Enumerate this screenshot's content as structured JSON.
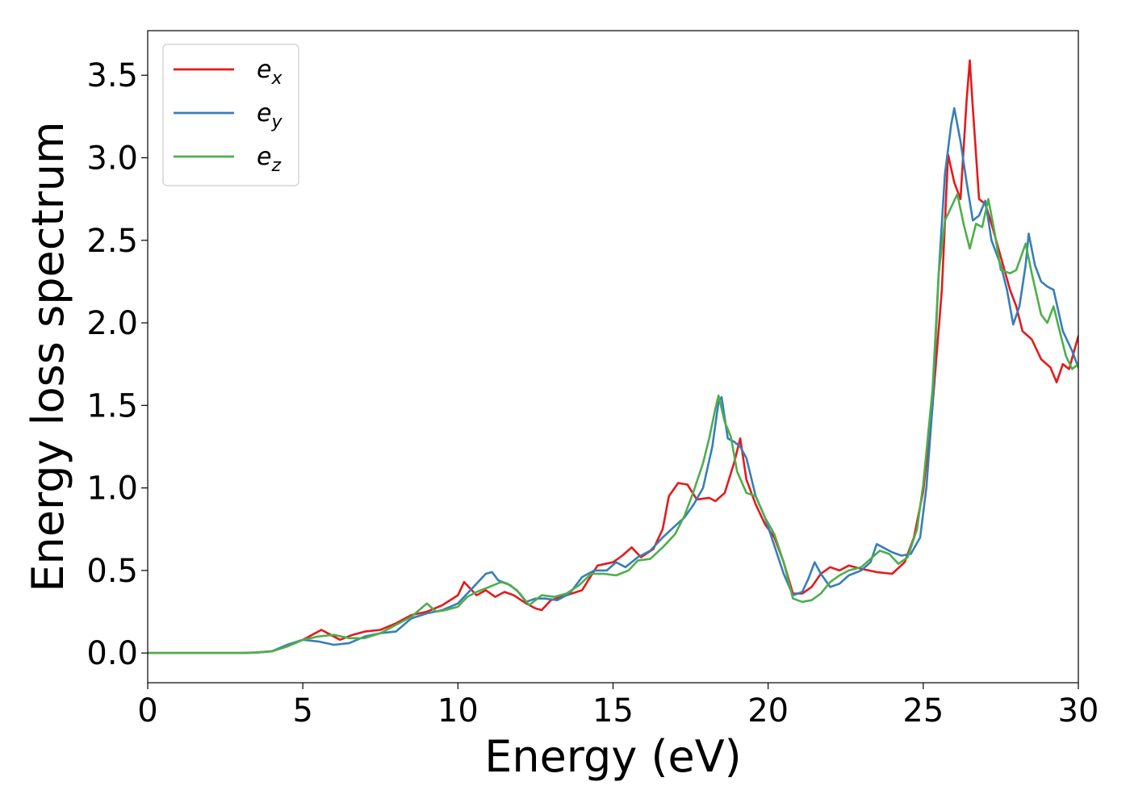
{
  "chart_data": {
    "type": "line",
    "title": "",
    "xlabel": "Energy (eV)",
    "ylabel": "Energy loss spectrum",
    "xlim": [
      0,
      30
    ],
    "ylim": [
      -0.18,
      3.77
    ],
    "xticks": [
      0,
      5,
      10,
      15,
      20,
      25,
      30
    ],
    "yticks": [
      0.0,
      0.5,
      1.0,
      1.5,
      2.0,
      2.5,
      3.0,
      3.5
    ],
    "xtick_labels": [
      "0",
      "5",
      "10",
      "15",
      "20",
      "25",
      "30"
    ],
    "ytick_labels": [
      "0.0",
      "0.5",
      "1.0",
      "1.5",
      "2.0",
      "2.5",
      "3.0",
      "3.5"
    ],
    "grid": false,
    "legend_position": "top-left",
    "series": [
      {
        "name": "e_x",
        "legend_base": "e",
        "legend_sub": "x",
        "color": "#e41a1c",
        "points": [
          [
            0,
            0
          ],
          [
            1,
            0
          ],
          [
            2,
            0
          ],
          [
            3,
            0
          ],
          [
            3.5,
            0.003
          ],
          [
            4,
            0.01
          ],
          [
            4.5,
            0.04
          ],
          [
            5,
            0.08
          ],
          [
            5.3,
            0.11
          ],
          [
            5.6,
            0.14
          ],
          [
            5.9,
            0.11
          ],
          [
            6.2,
            0.08
          ],
          [
            6.6,
            0.11
          ],
          [
            7,
            0.13
          ],
          [
            7.5,
            0.14
          ],
          [
            8,
            0.18
          ],
          [
            8.5,
            0.23
          ],
          [
            9,
            0.25
          ],
          [
            9.5,
            0.29
          ],
          [
            10,
            0.35
          ],
          [
            10.2,
            0.43
          ],
          [
            10.4,
            0.39
          ],
          [
            10.6,
            0.35
          ],
          [
            10.9,
            0.38
          ],
          [
            11.2,
            0.34
          ],
          [
            11.5,
            0.37
          ],
          [
            11.8,
            0.35
          ],
          [
            12.2,
            0.3
          ],
          [
            12.5,
            0.27
          ],
          [
            12.7,
            0.26
          ],
          [
            13,
            0.32
          ],
          [
            13.5,
            0.35
          ],
          [
            14,
            0.38
          ],
          [
            14.5,
            0.53
          ],
          [
            15,
            0.55
          ],
          [
            15.3,
            0.59
          ],
          [
            15.6,
            0.64
          ],
          [
            15.9,
            0.58
          ],
          [
            16.3,
            0.63
          ],
          [
            16.6,
            0.75
          ],
          [
            16.8,
            0.95
          ],
          [
            17.1,
            1.03
          ],
          [
            17.4,
            1.02
          ],
          [
            17.7,
            0.93
          ],
          [
            18.1,
            0.94
          ],
          [
            18.3,
            0.92
          ],
          [
            18.6,
            0.97
          ],
          [
            18.9,
            1.15
          ],
          [
            19.1,
            1.3
          ],
          [
            19.3,
            1.05
          ],
          [
            19.6,
            0.9
          ],
          [
            19.9,
            0.78
          ],
          [
            20.2,
            0.7
          ],
          [
            20.5,
            0.55
          ],
          [
            20.8,
            0.36
          ],
          [
            21.1,
            0.36
          ],
          [
            21.4,
            0.4
          ],
          [
            21.7,
            0.48
          ],
          [
            22,
            0.52
          ],
          [
            22.3,
            0.5
          ],
          [
            22.6,
            0.53
          ],
          [
            23,
            0.51
          ],
          [
            23.5,
            0.49
          ],
          [
            24,
            0.48
          ],
          [
            24.4,
            0.55
          ],
          [
            24.7,
            0.7
          ],
          [
            25,
            0.98
          ],
          [
            25.3,
            1.5
          ],
          [
            25.6,
            2.2
          ],
          [
            25.8,
            3.02
          ],
          [
            26,
            2.85
          ],
          [
            26.2,
            2.75
          ],
          [
            26.4,
            3.35
          ],
          [
            26.5,
            3.59
          ],
          [
            26.6,
            3.3
          ],
          [
            26.8,
            2.75
          ],
          [
            27,
            2.72
          ],
          [
            27.2,
            2.6
          ],
          [
            27.5,
            2.4
          ],
          [
            27.8,
            2.2
          ],
          [
            28,
            2.1
          ],
          [
            28.2,
            1.95
          ],
          [
            28.5,
            1.9
          ],
          [
            28.8,
            1.78
          ],
          [
            29.1,
            1.73
          ],
          [
            29.3,
            1.64
          ],
          [
            29.5,
            1.75
          ],
          [
            29.7,
            1.72
          ],
          [
            30,
            1.92
          ]
        ]
      },
      {
        "name": "e_y",
        "legend_base": "e",
        "legend_sub": "y",
        "color": "#377eb8",
        "points": [
          [
            0,
            0
          ],
          [
            1,
            0
          ],
          [
            2,
            0
          ],
          [
            3,
            0
          ],
          [
            3.5,
            0.003
          ],
          [
            4,
            0.01
          ],
          [
            4.5,
            0.05
          ],
          [
            5,
            0.08
          ],
          [
            5.5,
            0.07
          ],
          [
            6,
            0.05
          ],
          [
            6.5,
            0.06
          ],
          [
            7,
            0.1
          ],
          [
            7.5,
            0.12
          ],
          [
            8,
            0.13
          ],
          [
            8.5,
            0.21
          ],
          [
            9,
            0.24
          ],
          [
            9.5,
            0.26
          ],
          [
            10,
            0.3
          ],
          [
            10.3,
            0.36
          ],
          [
            10.6,
            0.42
          ],
          [
            10.9,
            0.48
          ],
          [
            11.1,
            0.49
          ],
          [
            11.3,
            0.44
          ],
          [
            11.6,
            0.42
          ],
          [
            11.9,
            0.38
          ],
          [
            12.2,
            0.31
          ],
          [
            12.5,
            0.33
          ],
          [
            12.8,
            0.33
          ],
          [
            13.2,
            0.32
          ],
          [
            13.6,
            0.36
          ],
          [
            14,
            0.46
          ],
          [
            14.4,
            0.5
          ],
          [
            14.8,
            0.5
          ],
          [
            15.1,
            0.55
          ],
          [
            15.4,
            0.52
          ],
          [
            15.8,
            0.58
          ],
          [
            16.2,
            0.62
          ],
          [
            16.6,
            0.7
          ],
          [
            17,
            0.77
          ],
          [
            17.3,
            0.82
          ],
          [
            17.6,
            0.9
          ],
          [
            17.9,
            1.0
          ],
          [
            18.2,
            1.25
          ],
          [
            18.4,
            1.52
          ],
          [
            18.5,
            1.55
          ],
          [
            18.7,
            1.3
          ],
          [
            18.9,
            1.28
          ],
          [
            19.1,
            1.25
          ],
          [
            19.3,
            1.18
          ],
          [
            19.6,
            0.95
          ],
          [
            19.9,
            0.82
          ],
          [
            20.2,
            0.65
          ],
          [
            20.5,
            0.48
          ],
          [
            20.8,
            0.35
          ],
          [
            21.1,
            0.37
          ],
          [
            21.3,
            0.45
          ],
          [
            21.5,
            0.55
          ],
          [
            21.7,
            0.48
          ],
          [
            22,
            0.4
          ],
          [
            22.3,
            0.42
          ],
          [
            22.6,
            0.47
          ],
          [
            23,
            0.5
          ],
          [
            23.3,
            0.55
          ],
          [
            23.5,
            0.66
          ],
          [
            23.7,
            0.64
          ],
          [
            24,
            0.61
          ],
          [
            24.3,
            0.59
          ],
          [
            24.6,
            0.6
          ],
          [
            24.9,
            0.7
          ],
          [
            25.1,
            1.0
          ],
          [
            25.3,
            1.5
          ],
          [
            25.5,
            2.3
          ],
          [
            25.7,
            2.9
          ],
          [
            25.9,
            3.2
          ],
          [
            26,
            3.3
          ],
          [
            26.2,
            3.1
          ],
          [
            26.4,
            2.85
          ],
          [
            26.6,
            2.62
          ],
          [
            26.8,
            2.65
          ],
          [
            27,
            2.74
          ],
          [
            27.2,
            2.5
          ],
          [
            27.5,
            2.35
          ],
          [
            27.7,
            2.2
          ],
          [
            27.9,
            1.99
          ],
          [
            28.1,
            2.1
          ],
          [
            28.3,
            2.35
          ],
          [
            28.4,
            2.54
          ],
          [
            28.6,
            2.35
          ],
          [
            28.8,
            2.25
          ],
          [
            29,
            2.22
          ],
          [
            29.2,
            2.2
          ],
          [
            29.5,
            1.95
          ],
          [
            29.8,
            1.83
          ],
          [
            30,
            1.73
          ]
        ]
      },
      {
        "name": "e_z",
        "legend_base": "e",
        "legend_sub": "z",
        "color": "#4daf4a",
        "points": [
          [
            0,
            0
          ],
          [
            1,
            0
          ],
          [
            2,
            0
          ],
          [
            3,
            0
          ],
          [
            3.5,
            0.003
          ],
          [
            4,
            0.01
          ],
          [
            4.5,
            0.04
          ],
          [
            5,
            0.08
          ],
          [
            5.5,
            0.1
          ],
          [
            6,
            0.11
          ],
          [
            6.5,
            0.09
          ],
          [
            7,
            0.09
          ],
          [
            7.5,
            0.12
          ],
          [
            8,
            0.17
          ],
          [
            8.5,
            0.22
          ],
          [
            9,
            0.3
          ],
          [
            9.3,
            0.25
          ],
          [
            9.6,
            0.26
          ],
          [
            10,
            0.28
          ],
          [
            10.3,
            0.34
          ],
          [
            10.6,
            0.37
          ],
          [
            11,
            0.4
          ],
          [
            11.4,
            0.43
          ],
          [
            11.7,
            0.41
          ],
          [
            12,
            0.36
          ],
          [
            12.3,
            0.29
          ],
          [
            12.7,
            0.35
          ],
          [
            13.1,
            0.34
          ],
          [
            13.5,
            0.36
          ],
          [
            13.9,
            0.41
          ],
          [
            14.3,
            0.48
          ],
          [
            14.7,
            0.48
          ],
          [
            15.1,
            0.47
          ],
          [
            15.5,
            0.5
          ],
          [
            15.8,
            0.56
          ],
          [
            16.2,
            0.57
          ],
          [
            16.6,
            0.64
          ],
          [
            17,
            0.72
          ],
          [
            17.3,
            0.83
          ],
          [
            17.6,
            0.98
          ],
          [
            17.9,
            1.15
          ],
          [
            18.1,
            1.3
          ],
          [
            18.3,
            1.48
          ],
          [
            18.4,
            1.56
          ],
          [
            18.6,
            1.4
          ],
          [
            18.8,
            1.31
          ],
          [
            19,
            1.1
          ],
          [
            19.3,
            0.97
          ],
          [
            19.6,
            0.95
          ],
          [
            19.9,
            0.82
          ],
          [
            20.2,
            0.72
          ],
          [
            20.5,
            0.55
          ],
          [
            20.8,
            0.33
          ],
          [
            21.1,
            0.31
          ],
          [
            21.4,
            0.32
          ],
          [
            21.7,
            0.36
          ],
          [
            22,
            0.43
          ],
          [
            22.3,
            0.47
          ],
          [
            22.6,
            0.5
          ],
          [
            23,
            0.52
          ],
          [
            23.3,
            0.57
          ],
          [
            23.6,
            0.62
          ],
          [
            23.9,
            0.6
          ],
          [
            24.2,
            0.54
          ],
          [
            24.5,
            0.58
          ],
          [
            24.8,
            0.75
          ],
          [
            25,
            1.02
          ],
          [
            25.3,
            1.6
          ],
          [
            25.5,
            2.3
          ],
          [
            25.7,
            2.62
          ],
          [
            25.9,
            2.7
          ],
          [
            26.1,
            2.78
          ],
          [
            26.3,
            2.6
          ],
          [
            26.5,
            2.45
          ],
          [
            26.7,
            2.6
          ],
          [
            26.9,
            2.58
          ],
          [
            27.1,
            2.75
          ],
          [
            27.3,
            2.55
          ],
          [
            27.5,
            2.32
          ],
          [
            27.8,
            2.3
          ],
          [
            28,
            2.32
          ],
          [
            28.3,
            2.48
          ],
          [
            28.5,
            2.3
          ],
          [
            28.8,
            2.05
          ],
          [
            29,
            2.0
          ],
          [
            29.2,
            2.1
          ],
          [
            29.4,
            1.95
          ],
          [
            29.6,
            1.8
          ],
          [
            29.8,
            1.72
          ],
          [
            30,
            1.75
          ]
        ]
      }
    ]
  }
}
